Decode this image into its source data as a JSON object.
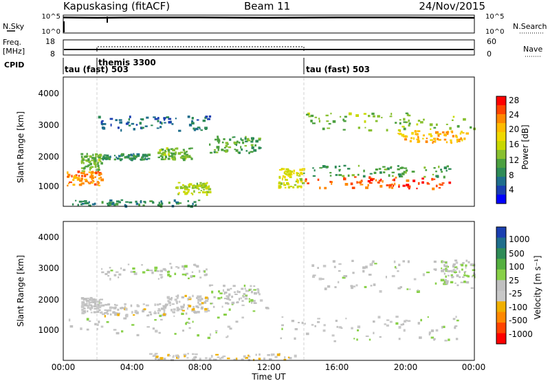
{
  "header": {
    "station": "Kapuskasing (fitACF)",
    "beam": "Beam 11",
    "date": "24/Nov/2015"
  },
  "noise_panel": {
    "left_label": "N.Sky",
    "left_ticks": [
      "10^5",
      "10^0"
    ],
    "right_label": "N.Search",
    "right_ticks": [
      "10^5",
      "10^0"
    ]
  },
  "freq_panel": {
    "left_label_line1": "Freq.",
    "left_label_line2": "[MHz]",
    "left_ticks": [
      "18",
      "8"
    ],
    "right_label": "Nave",
    "right_ticks": [
      "60",
      "0"
    ]
  },
  "cpid_panel": {
    "label": "CPID",
    "modes": [
      {
        "name": "tau (fast) 503",
        "start_hour": 0
      },
      {
        "name": "themis 3300",
        "start_hour": 2
      },
      {
        "name": "tau (fast) 503",
        "start_hour": 14
      }
    ]
  },
  "x_axis": {
    "label": "Time UT",
    "ticks": [
      "00:00",
      "04:00",
      "08:00",
      "12:00",
      "16:00",
      "20:00",
      "00:00"
    ],
    "range_hours": [
      0,
      24
    ]
  },
  "power_panel": {
    "ylabel": "Slant Range [km]",
    "yticks": [
      "1000",
      "2000",
      "3000",
      "4000"
    ],
    "colorbar_label": "Power [dB]",
    "colorbar_ticks": [
      "28",
      "24",
      "20",
      "16",
      "12",
      "8",
      "4"
    ],
    "colors": [
      "#ff0000",
      "#ff4400",
      "#ff8800",
      "#ffbb00",
      "#f0d800",
      "#c8d800",
      "#88c030",
      "#4ca040",
      "#2e8b57",
      "#1f6e8c",
      "#1a3fb0",
      "#0000ff"
    ]
  },
  "velocity_panel": {
    "ylabel": "Slant Range [km]",
    "yticks": [
      "1000",
      "2000",
      "3000",
      "4000"
    ],
    "colorbar_label": "Velocity [m s⁻¹]",
    "colorbar_ticks": [
      "1000",
      "500",
      "100",
      "25",
      "-25",
      "-100",
      "-500",
      "-1000"
    ],
    "colors": [
      "#1a3fb0",
      "#1f6e8c",
      "#2e8b57",
      "#55b040",
      "#88d048",
      "#c0c0c0",
      "#c8c8c8",
      "#f0b000",
      "#ff8800",
      "#ff4400",
      "#ff0000"
    ]
  },
  "chart_data": [
    {
      "type": "line",
      "title": "N.Sky / N.Search",
      "x_range_hours": [
        0,
        24
      ],
      "series": [
        {
          "name": "N.Sky",
          "x": [
            0,
            2,
            4,
            8,
            12,
            16,
            20,
            24
          ],
          "y_log10": [
            4.5,
            4.4,
            4.5,
            4.5,
            4.4,
            4.5,
            4.5,
            4.4
          ]
        }
      ]
    },
    {
      "type": "line",
      "title": "Freq. / Nave",
      "x_range_hours": [
        0,
        24
      ],
      "series": [
        {
          "name": "Freq. [MHz]",
          "x": [
            0,
            24
          ],
          "y": [
            10.5,
            10.5
          ]
        },
        {
          "name": "Nave",
          "x": [
            2,
            14
          ],
          "y": [
            35,
            35
          ]
        }
      ]
    },
    {
      "type": "heatmap",
      "title": "Power [dB]",
      "x_range_hours": [
        0,
        24
      ],
      "y_range_km": [
        180,
        4600
      ],
      "regions": [
        {
          "t": [
            0.2,
            2.2
          ],
          "r": [
            900,
            1400
          ],
          "value": 24
        },
        {
          "t": [
            1.0,
            2.2
          ],
          "r": [
            1400,
            2000
          ],
          "value": 14
        },
        {
          "t": [
            2.2,
            5.0
          ],
          "r": [
            1800,
            2000
          ],
          "value": 10
        },
        {
          "t": [
            2.0,
            8.5
          ],
          "r": [
            2800,
            3300
          ],
          "value": 8
        },
        {
          "t": [
            8.5,
            11.5
          ],
          "r": [
            2000,
            2600
          ],
          "value": 12
        },
        {
          "t": [
            5.5,
            7.5
          ],
          "r": [
            1800,
            2200
          ],
          "value": 14
        },
        {
          "t": [
            6.5,
            8.5
          ],
          "r": [
            600,
            1000
          ],
          "value": 16
        },
        {
          "t": [
            0.5,
            8.0
          ],
          "r": [
            200,
            400
          ],
          "value": 10
        },
        {
          "t": [
            12.5,
            14.0
          ],
          "r": [
            800,
            1500
          ],
          "value": 18
        },
        {
          "t": [
            14.0,
            22.5
          ],
          "r": [
            800,
            1200
          ],
          "value": 26
        },
        {
          "t": [
            14.0,
            22.5
          ],
          "r": [
            1200,
            1600
          ],
          "value": 12
        },
        {
          "t": [
            19.5,
            23.5
          ],
          "r": [
            2400,
            2800
          ],
          "value": 22
        },
        {
          "t": [
            14.0,
            24.0
          ],
          "r": [
            2800,
            3400
          ],
          "value": 14
        }
      ]
    },
    {
      "type": "heatmap",
      "title": "Velocity [m s⁻¹]",
      "x_range_hours": [
        0,
        24
      ],
      "y_range_km": [
        180,
        4600
      ],
      "regions": [
        {
          "t": [
            0.2,
            12.0
          ],
          "r": [
            900,
            2000
          ],
          "value": 0
        },
        {
          "t": [
            1.0,
            2.2
          ],
          "r": [
            1700,
            2200
          ],
          "value": -80
        },
        {
          "t": [
            2.0,
            6.0
          ],
          "r": [
            1600,
            2000
          ],
          "value": -120
        },
        {
          "t": [
            6.0,
            8.5
          ],
          "r": [
            1700,
            2300
          ],
          "value": -150
        },
        {
          "t": [
            8.5,
            11.5
          ],
          "r": [
            2000,
            2600
          ],
          "value": 0
        },
        {
          "t": [
            2.0,
            8.5
          ],
          "r": [
            2800,
            3300
          ],
          "value": 0
        },
        {
          "t": [
            5.0,
            13.5
          ],
          "r": [
            200,
            400
          ],
          "value": -200
        },
        {
          "t": [
            12.5,
            23.0
          ],
          "r": [
            800,
            1600
          ],
          "value": 0
        },
        {
          "t": [
            14.5,
            24.0
          ],
          "r": [
            2400,
            3400
          ],
          "value": -50
        },
        {
          "t": [
            22.0,
            24.0
          ],
          "r": [
            2600,
            3400
          ],
          "value": 80
        }
      ]
    }
  ]
}
